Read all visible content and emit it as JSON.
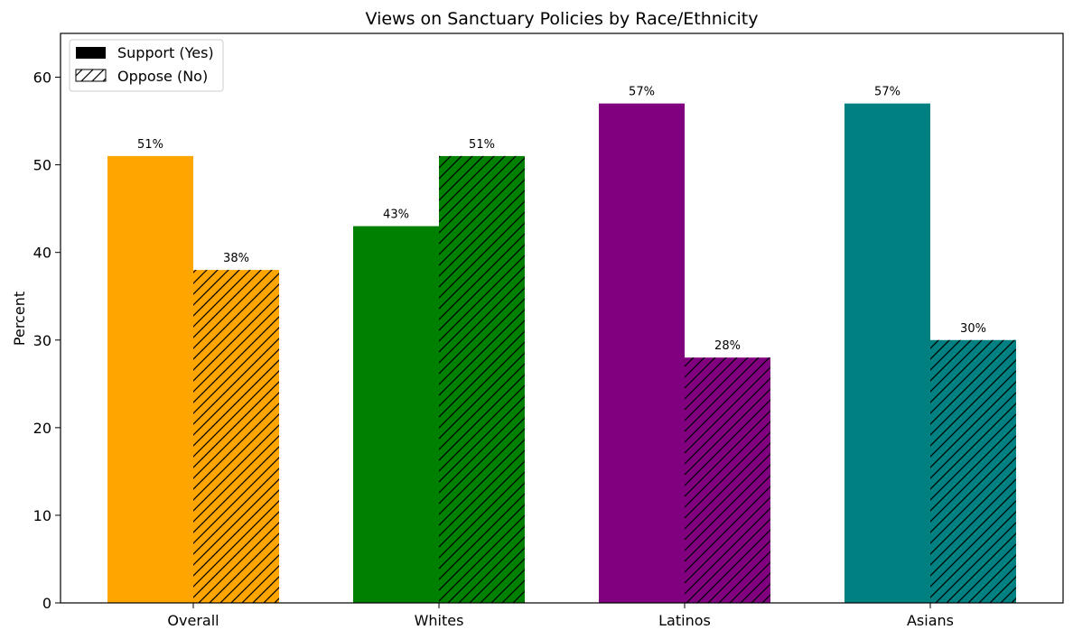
{
  "chart_data": {
    "type": "bar",
    "title": "Views on Sanctuary Policies by Race/Ethnicity",
    "xlabel": "",
    "ylabel": "Percent",
    "categories": [
      "Overall",
      "Whites",
      "Latinos",
      "Asians"
    ],
    "category_colors": [
      "#FFA500",
      "#008000",
      "#800080",
      "#008080"
    ],
    "ylim": [
      0,
      65
    ],
    "yticks": [
      0,
      10,
      20,
      30,
      40,
      50,
      60
    ],
    "grid": false,
    "legend_position": "top-left",
    "series": [
      {
        "name": "Support (Yes)",
        "values": [
          51,
          43,
          57,
          57
        ],
        "pattern": "solid",
        "labels": [
          "51%",
          "43%",
          "57%",
          "57%"
        ]
      },
      {
        "name": "Oppose (No)",
        "values": [
          38,
          51,
          28,
          30
        ],
        "pattern": "hatch",
        "labels": [
          "38%",
          "51%",
          "28%",
          "30%"
        ]
      }
    ]
  }
}
